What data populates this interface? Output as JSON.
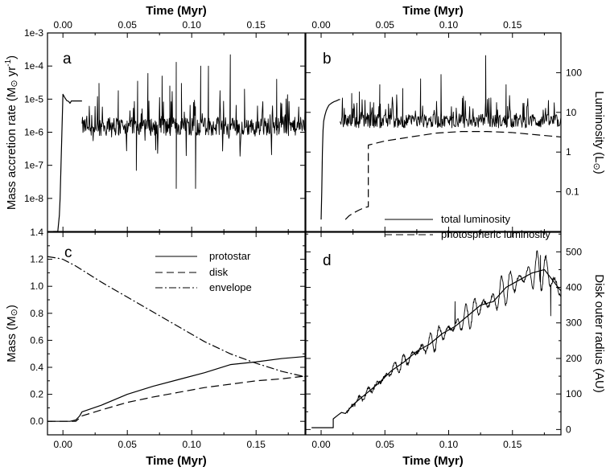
{
  "chart_data": [
    {
      "panel": "a",
      "type": "line",
      "yscale": "log",
      "xlim": [
        -0.012,
        0.188
      ],
      "ylim": [
        1e-09,
        0.001
      ],
      "xlabel_top": "Time (Myr)",
      "ylabel": "Mass accretion rate (M⊙ yr⁻¹)",
      "x_ticks": [
        "0.00",
        "0.05",
        "0.10",
        "0.15"
      ],
      "x_tick_values": [
        0.0,
        0.05,
        0.1,
        0.15
      ],
      "y_ticks": [
        "1e-8",
        "1e-7",
        "1e-6",
        "1e-5",
        "1e-4",
        "1e-3"
      ],
      "y_tick_values": [
        1e-08,
        1e-07,
        1e-06,
        1e-05,
        0.0001,
        0.001
      ],
      "series": [
        {
          "name": "mass accretion rate",
          "style": "solid",
          "x": [
            -0.0075,
            -0.004,
            -0.0028,
            -0.0022,
            -0.0015,
            -0.0008,
            0.0,
            0.0015,
            0.003,
            0.0045,
            0.0055,
            0.0065,
            0.009,
            0.011,
            0.014,
            0.0148
          ],
          "y": [
            1e-09,
            1e-09,
            3e-09,
            1e-08,
            1e-07,
            1e-06,
            1.4e-05,
            1.1e-05,
            9e-06,
            8.5e-06,
            7.5e-06,
            8.8e-06,
            8.8e-06,
            8.8e-06,
            8.8e-06,
            8.8e-06
          ]
        }
      ],
      "variability": {
        "x_range": [
          0.0148,
          0.188
        ],
        "baseline": 1.5e-06,
        "spike_times": [
          0.028,
          0.043,
          0.058,
          0.066,
          0.077,
          0.083,
          0.088,
          0.092,
          0.107,
          0.113,
          0.122,
          0.13,
          0.141,
          0.166
        ],
        "spike_peaks": [
          3e-05,
          1.8e-05,
          3.5e-05,
          6e-05,
          5e-05,
          2.5e-05,
          0.00013,
          3e-05,
          0.0001,
          0.0001,
          1.8e-05,
          0.00022,
          2e-05,
          4e-05
        ],
        "dip_times": [
          0.057,
          0.088,
          0.103
        ],
        "dip_values": [
          7e-08,
          2e-08,
          2e-08
        ]
      }
    },
    {
      "panel": "b",
      "type": "line",
      "yscale": "log",
      "xlim": [
        -0.012,
        0.188
      ],
      "ylim": [
        0.01,
        1000
      ],
      "xlabel_top": "Time (Myr)",
      "ylabel_right": "Luminosity (L⊙)",
      "x_ticks": [
        "0.00",
        "0.05",
        "0.10",
        "0.15"
      ],
      "x_tick_values": [
        0.0,
        0.05,
        0.1,
        0.15
      ],
      "y_ticks": [
        "0.1",
        "1",
        "10",
        "100"
      ],
      "y_tick_values": [
        0.1,
        1,
        10,
        100
      ],
      "series": [
        {
          "name": "total luminosity",
          "style": "solid",
          "x": [
            0.0,
            0.0005,
            0.001,
            0.0015,
            0.002,
            0.003,
            0.004,
            0.005,
            0.006,
            0.008,
            0.01,
            0.012,
            0.014,
            0.0148
          ],
          "y": [
            0.02,
            0.1,
            1.0,
            3.5,
            6.0,
            8.5,
            11.0,
            13.0,
            15.0,
            17.0,
            18.5,
            19.5,
            21.0,
            21.0
          ]
        },
        {
          "name": "photospheric luminosity",
          "style": "dashed",
          "x": [
            0.019,
            0.022,
            0.026,
            0.03,
            0.034,
            0.037,
            0.037,
            0.05,
            0.07,
            0.09,
            0.11,
            0.13,
            0.15,
            0.17,
            0.188
          ],
          "y": [
            0.02,
            0.025,
            0.03,
            0.035,
            0.04,
            0.042,
            1.5,
            1.9,
            2.4,
            3.0,
            3.3,
            3.3,
            3.1,
            2.7,
            2.4
          ]
        }
      ],
      "variability": {
        "x_range": [
          0.0148,
          0.188
        ],
        "baseline": 6.0,
        "spike_times": [
          0.024,
          0.03,
          0.046,
          0.064,
          0.078,
          0.094,
          0.129,
          0.145
        ],
        "spike_peaks": [
          30,
          33,
          50,
          40,
          70,
          90,
          270,
          50
        ]
      },
      "legend": [
        "total luminosity",
        "photospheric luminosity"
      ]
    },
    {
      "panel": "c",
      "type": "line",
      "xlim": [
        -0.012,
        0.188
      ],
      "ylim": [
        -0.1,
        1.4
      ],
      "xlabel": "Time (Myr)",
      "ylabel": "Mass (M⊙)",
      "x_ticks": [
        "0.00",
        "0.05",
        "0.10",
        "0.15"
      ],
      "x_tick_values": [
        0.0,
        0.05,
        0.1,
        0.15
      ],
      "y_ticks": [
        "0.0",
        "0.2",
        "0.4",
        "0.6",
        "0.8",
        "1.0",
        "1.2",
        "1.4"
      ],
      "y_tick_values": [
        0.0,
        0.2,
        0.4,
        0.6,
        0.8,
        1.0,
        1.2,
        1.4
      ],
      "series": [
        {
          "name": "protostar",
          "style": "solid",
          "x": [
            -0.012,
            0.0,
            0.0055,
            0.01,
            0.013,
            0.0148,
            0.03,
            0.05,
            0.07,
            0.09,
            0.11,
            0.13,
            0.15,
            0.17,
            0.188
          ],
          "y": [
            0.0,
            0.0,
            0.0,
            0.01,
            0.04,
            0.07,
            0.12,
            0.2,
            0.26,
            0.31,
            0.36,
            0.42,
            0.44,
            0.465,
            0.48
          ]
        },
        {
          "name": "disk",
          "style": "dashed",
          "x": [
            -0.012,
            0.01,
            0.0148,
            0.03,
            0.05,
            0.07,
            0.09,
            0.11,
            0.13,
            0.15,
            0.17,
            0.188
          ],
          "y": [
            0.0,
            0.0,
            0.04,
            0.085,
            0.14,
            0.18,
            0.215,
            0.25,
            0.275,
            0.3,
            0.315,
            0.335
          ]
        },
        {
          "name": "envelope",
          "style": "dash-dot",
          "x": [
            -0.012,
            -0.005,
            0.0,
            0.01,
            0.03,
            0.05,
            0.07,
            0.09,
            0.11,
            0.13,
            0.15,
            0.17,
            0.188
          ],
          "y": [
            1.22,
            1.21,
            1.2,
            1.15,
            1.03,
            0.92,
            0.81,
            0.7,
            0.59,
            0.5,
            0.43,
            0.37,
            0.33
          ]
        }
      ],
      "legend": [
        "protostar",
        "disk",
        "envelope"
      ]
    },
    {
      "panel": "d",
      "type": "line",
      "xlim": [
        -0.012,
        0.188
      ],
      "ylim": [
        -15,
        555
      ],
      "xlabel": "Time (Myr)",
      "ylabel_right": "Disk outer radius (AU)",
      "x_ticks": [
        "0.00",
        "0.05",
        "0.10",
        "0.15"
      ],
      "x_tick_values": [
        0.0,
        0.05,
        0.1,
        0.15
      ],
      "y_ticks": [
        "0",
        "100",
        "200",
        "300",
        "400",
        "500"
      ],
      "y_tick_values": [
        0,
        100,
        200,
        300,
        400,
        500
      ],
      "series": [
        {
          "name": "disk outer radius",
          "style": "solid",
          "x": [
            -0.0075,
            0.0,
            0.005,
            0.0095,
            0.0095,
            0.013,
            0.016,
            0.019,
            0.025,
            0.035,
            0.045,
            0.055,
            0.065,
            0.075,
            0.085,
            0.095,
            0.105,
            0.115,
            0.125,
            0.135,
            0.145,
            0.155,
            0.165,
            0.175,
            0.188
          ],
          "y": [
            5,
            5,
            5,
            5,
            30,
            40,
            48,
            45,
            70,
            100,
            130,
            165,
            190,
            220,
            240,
            270,
            290,
            320,
            350,
            360,
            400,
            420,
            440,
            450,
            390
          ]
        }
      ],
      "oscillation": {
        "x_range": [
          0.02,
          0.188
        ],
        "notable": [
          {
            "x": 0.105,
            "y": 360
          },
          {
            "x": 0.172,
            "y": 490
          },
          {
            "x": 0.18,
            "y": 320
          }
        ]
      }
    }
  ],
  "labels": {
    "top_left_xlabel": "Time (Myr)",
    "top_right_xlabel": "Time (Myr)",
    "bottom_left_xlabel": "Time (Myr)",
    "bottom_right_xlabel": "Time (Myr)",
    "ylabel_a": "Mass accretion rate (M",
    "ylabel_a_tail": " yr",
    "ylabel_a_exp": "-1",
    "ylabel_a_end": ")",
    "ylabel_b": "Luminosity (L",
    "ylabel_b_end": ")",
    "ylabel_c": "Mass (M",
    "ylabel_c_end": ")",
    "ylabel_d": "Disk outer radius (AU)",
    "sun_symbol": "⊙",
    "panel_a": "a",
    "panel_b": "b",
    "panel_c": "c",
    "panel_d": "d",
    "legend_total": "total luminosity",
    "legend_phot": "photospheric luminosity",
    "legend_protostar": "protostar",
    "legend_disk": "disk",
    "legend_envelope": "envelope"
  }
}
